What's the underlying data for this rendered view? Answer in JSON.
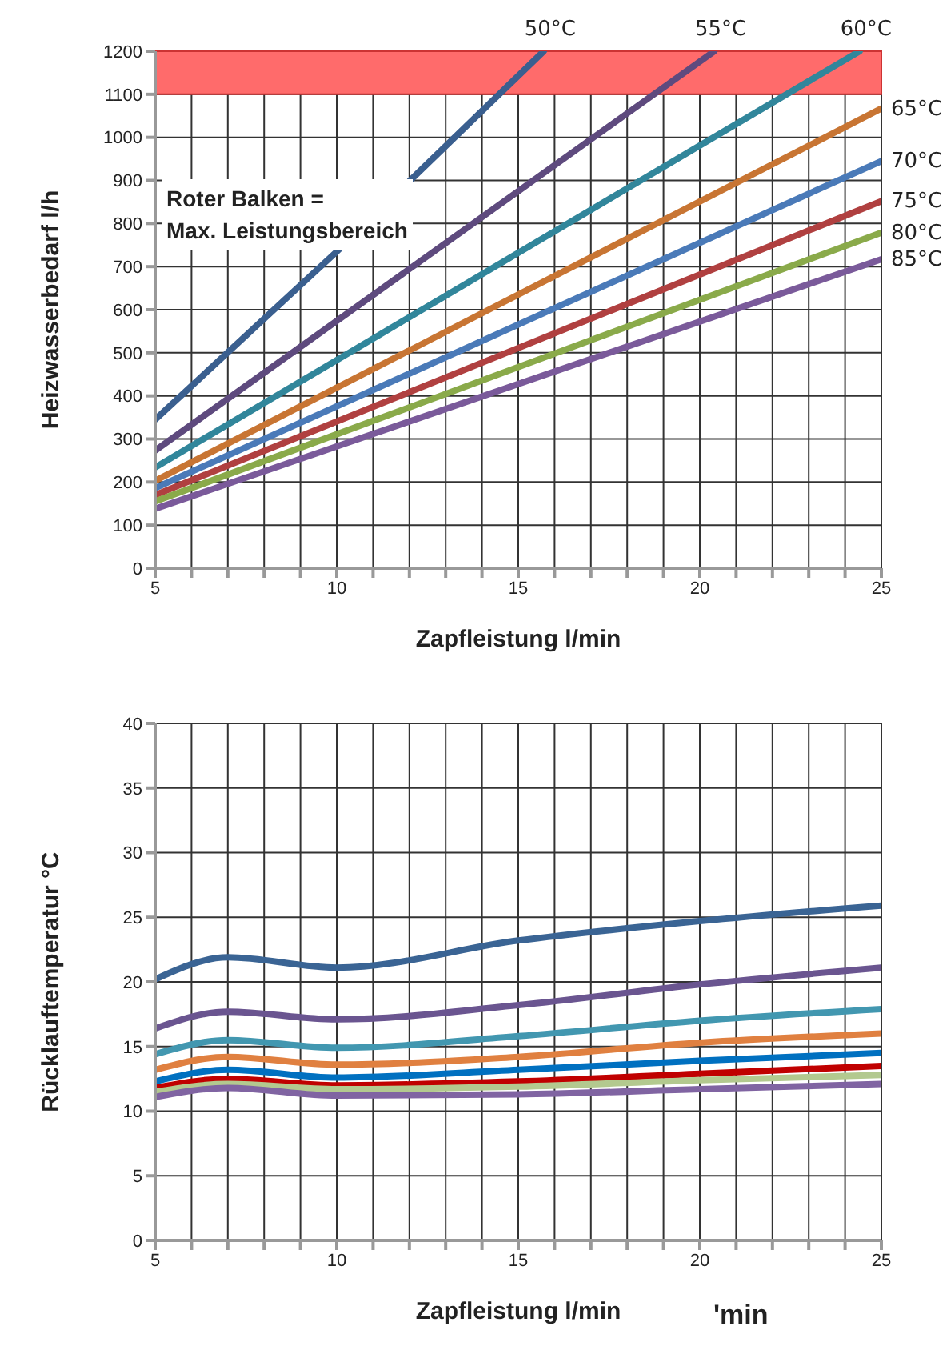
{
  "chart_data": [
    {
      "type": "line",
      "xlabel": "Zapfleistung l/min",
      "ylabel": "Heizwasserbedarf l/h",
      "xlim": [
        5,
        25
      ],
      "ylim": [
        0,
        1200
      ],
      "xticks": [
        5,
        {
          "value": 6,
          "label": null
        },
        {
          "value": 7,
          "label": null
        },
        {
          "value": 8,
          "label": null
        },
        {
          "value": 9,
          "label": null
        },
        10,
        {
          "value": 11,
          "label": null
        },
        {
          "value": 12,
          "label": null
        },
        {
          "value": 13,
          "label": null
        },
        {
          "value": 14,
          "label": null
        },
        15,
        {
          "value": 16,
          "label": null
        },
        {
          "value": 17,
          "label": null
        },
        {
          "value": 18,
          "label": null
        },
        {
          "value": 19,
          "label": null
        },
        20,
        {
          "value": 21,
          "label": null
        },
        {
          "value": 22,
          "label": null
        },
        {
          "value": 23,
          "label": null
        },
        {
          "value": 24,
          "label": null
        },
        25
      ],
      "yticks": [
        0,
        100,
        200,
        300,
        400,
        500,
        600,
        700,
        800,
        900,
        1000,
        1100,
        1200
      ],
      "grid": true,
      "legend": false,
      "marker": "none",
      "line_style": "solid",
      "bands": [
        {
          "axis": "y",
          "from": 1100,
          "to": 1200,
          "color": "#ff6b6b"
        }
      ],
      "annotations": [
        "Roter Balken =\nMax. Leistungsbereich"
      ],
      "series": [
        {
          "name": "50°C",
          "color": "#3a5f8f",
          "x": [
            5,
            10,
            15.7
          ],
          "values": [
            345,
            735,
            1200
          ]
        },
        {
          "name": "55°C",
          "color": "#5e4a7e",
          "x": [
            5,
            20.4
          ],
          "values": [
            273,
            1200
          ]
        },
        {
          "name": "60°C",
          "color": "#31869b",
          "x": [
            5,
            24.4
          ],
          "values": [
            234,
            1200
          ]
        },
        {
          "name": "65°C",
          "color": "#c87533",
          "x": [
            5,
            25
          ],
          "values": [
            203,
            1067
          ]
        },
        {
          "name": "70°C",
          "color": "#4a7ab8",
          "x": [
            5,
            25
          ],
          "values": [
            186,
            945
          ]
        },
        {
          "name": "75°C",
          "color": "#b04040",
          "x": [
            5,
            25
          ],
          "values": [
            170,
            852
          ]
        },
        {
          "name": "80°C",
          "color": "#8aaa4a",
          "x": [
            5,
            25
          ],
          "values": [
            155,
            779
          ]
        },
        {
          "name": "85°C",
          "color": "#7a5a9a",
          "x": [
            5,
            25
          ],
          "values": [
            138,
            717
          ]
        }
      ]
    },
    {
      "type": "line",
      "xlabel": "Zapfleistung l/min",
      "ylabel": "Rücklauftemperatur °C",
      "xlim": [
        5,
        25
      ],
      "ylim": [
        0,
        40
      ],
      "xticks": [
        5,
        {
          "value": 6,
          "label": null
        },
        {
          "value": 7,
          "label": null
        },
        {
          "value": 8,
          "label": null
        },
        {
          "value": 9,
          "label": null
        },
        10,
        {
          "value": 11,
          "label": null
        },
        {
          "value": 12,
          "label": null
        },
        {
          "value": 13,
          "label": null
        },
        {
          "value": 14,
          "label": null
        },
        15,
        {
          "value": 16,
          "label": null
        },
        {
          "value": 17,
          "label": null
        },
        {
          "value": 18,
          "label": null
        },
        {
          "value": 19,
          "label": null
        },
        20,
        {
          "value": 21,
          "label": null
        },
        {
          "value": 22,
          "label": null
        },
        {
          "value": 23,
          "label": null
        },
        {
          "value": 24,
          "label": null
        },
        25
      ],
      "yticks": [
        0,
        5,
        10,
        15,
        20,
        25,
        30,
        35,
        40
      ],
      "grid": true,
      "legend": false,
      "marker": "none",
      "line_style": "solid",
      "annotations": [
        "'min"
      ],
      "x": [
        5,
        7,
        10,
        15,
        20,
        25
      ],
      "series": [
        {
          "color": "#3a6494",
          "values": [
            20.2,
            21.9,
            21.1,
            23.2,
            24.7,
            25.9
          ]
        },
        {
          "color": "#6a5590",
          "values": [
            16.4,
            17.7,
            17.1,
            18.2,
            19.8,
            21.1
          ]
        },
        {
          "color": "#4297b0",
          "values": [
            14.4,
            15.5,
            14.9,
            15.8,
            17.0,
            17.9
          ]
        },
        {
          "color": "#e08040",
          "values": [
            13.2,
            14.2,
            13.6,
            14.2,
            15.3,
            16.0
          ]
        },
        {
          "color": "#0070c0",
          "values": [
            12.3,
            13.2,
            12.6,
            13.2,
            13.9,
            14.5
          ]
        },
        {
          "color": "#c00000",
          "values": [
            11.8,
            12.5,
            12.0,
            12.3,
            12.9,
            13.5
          ]
        },
        {
          "color": "#b3c98f",
          "values": [
            11.5,
            12.1,
            11.7,
            11.9,
            12.4,
            12.8
          ]
        },
        {
          "color": "#8064a2",
          "values": [
            11.1,
            11.8,
            11.2,
            11.3,
            11.7,
            12.1
          ]
        }
      ]
    }
  ]
}
